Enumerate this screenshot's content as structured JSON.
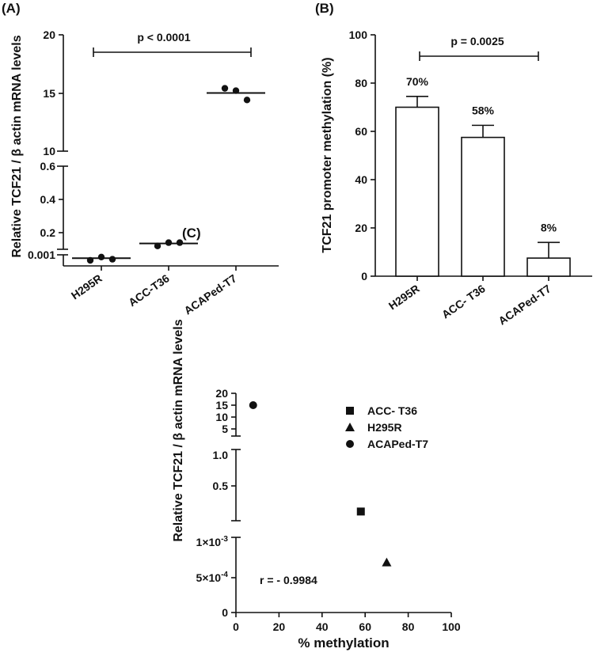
{
  "chart_data": [
    {
      "type": "scatter",
      "panel_label": "(A)",
      "ylabel": "Relative TCF21 / β actin mRNA levels",
      "categories": [
        "H295R",
        "ACC-T36",
        "ACAPed-T7"
      ],
      "y_segments": [
        {
          "range": [
            0,
            0.001
          ],
          "ticks": [
            "0.001"
          ]
        },
        {
          "range": [
            0.1,
            0.6
          ],
          "ticks": [
            "0.2",
            "0.4",
            "0.6"
          ]
        },
        {
          "range": [
            10,
            20
          ],
          "ticks": [
            "10",
            "15",
            "20"
          ]
        }
      ],
      "series": [
        {
          "category": "H295R",
          "points": [
            0.0005,
            0.0008,
            0.0006
          ],
          "mean": 0.0007
        },
        {
          "category": "ACC-T36",
          "points": [
            0.12,
            0.14,
            0.14
          ],
          "mean": 0.135
        },
        {
          "category": "ACAPed-T7",
          "points": [
            15.4,
            15.2,
            14.4
          ],
          "mean": 15.0
        }
      ],
      "annotation": {
        "text": "p < 0.0001",
        "from": "H295R",
        "to": "ACAPed-T7"
      }
    },
    {
      "type": "bar",
      "panel_label": "(B)",
      "ylabel": "TCF21 promoter methylation (%)",
      "categories": [
        "H295R",
        "ACC- T36",
        "ACAPed-T7"
      ],
      "values": [
        70,
        57.5,
        7.5
      ],
      "errors": [
        4.5,
        5,
        6.5
      ],
      "data_labels": [
        "70%",
        "58%",
        "8%"
      ],
      "ylim": [
        0,
        100
      ],
      "yticks": [
        "0",
        "20",
        "40",
        "60",
        "80",
        "100"
      ],
      "annotation": {
        "text": "p = 0.0025",
        "from": "H295R",
        "to": "ACAPed-T7"
      }
    },
    {
      "type": "scatter",
      "panel_label": "(C)",
      "ylabel": "Relative TCF21 / β actin mRNA levels",
      "xlabel": "% methylation",
      "xlim": [
        0,
        100
      ],
      "xticks": [
        "0",
        "20",
        "40",
        "60",
        "80",
        "100"
      ],
      "y_segments": [
        {
          "range": [
            0,
            0.001
          ],
          "ticks": [
            "0",
            "5×10",
            "1×10"
          ],
          "exponents": [
            "",
            "-4",
            "-3"
          ]
        },
        {
          "range": [
            0,
            1.0
          ],
          "ticks": [
            "0.5",
            "1.0"
          ]
        },
        {
          "range": [
            0,
            20
          ],
          "ticks": [
            "5",
            "10",
            "15",
            "20"
          ]
        }
      ],
      "legend": [
        "ACC- T36",
        "H295R",
        "ACAPed-T7"
      ],
      "legend_markers": [
        "square",
        "triangle",
        "circle"
      ],
      "points": [
        {
          "series": "ACC- T36",
          "x": 58,
          "y": 0.14
        },
        {
          "series": "H295R",
          "x": 70,
          "y": 0.00072
        },
        {
          "series": "ACAPed-T7",
          "x": 8,
          "y": 15
        }
      ],
      "annotation": "r = - 0.9984"
    }
  ]
}
